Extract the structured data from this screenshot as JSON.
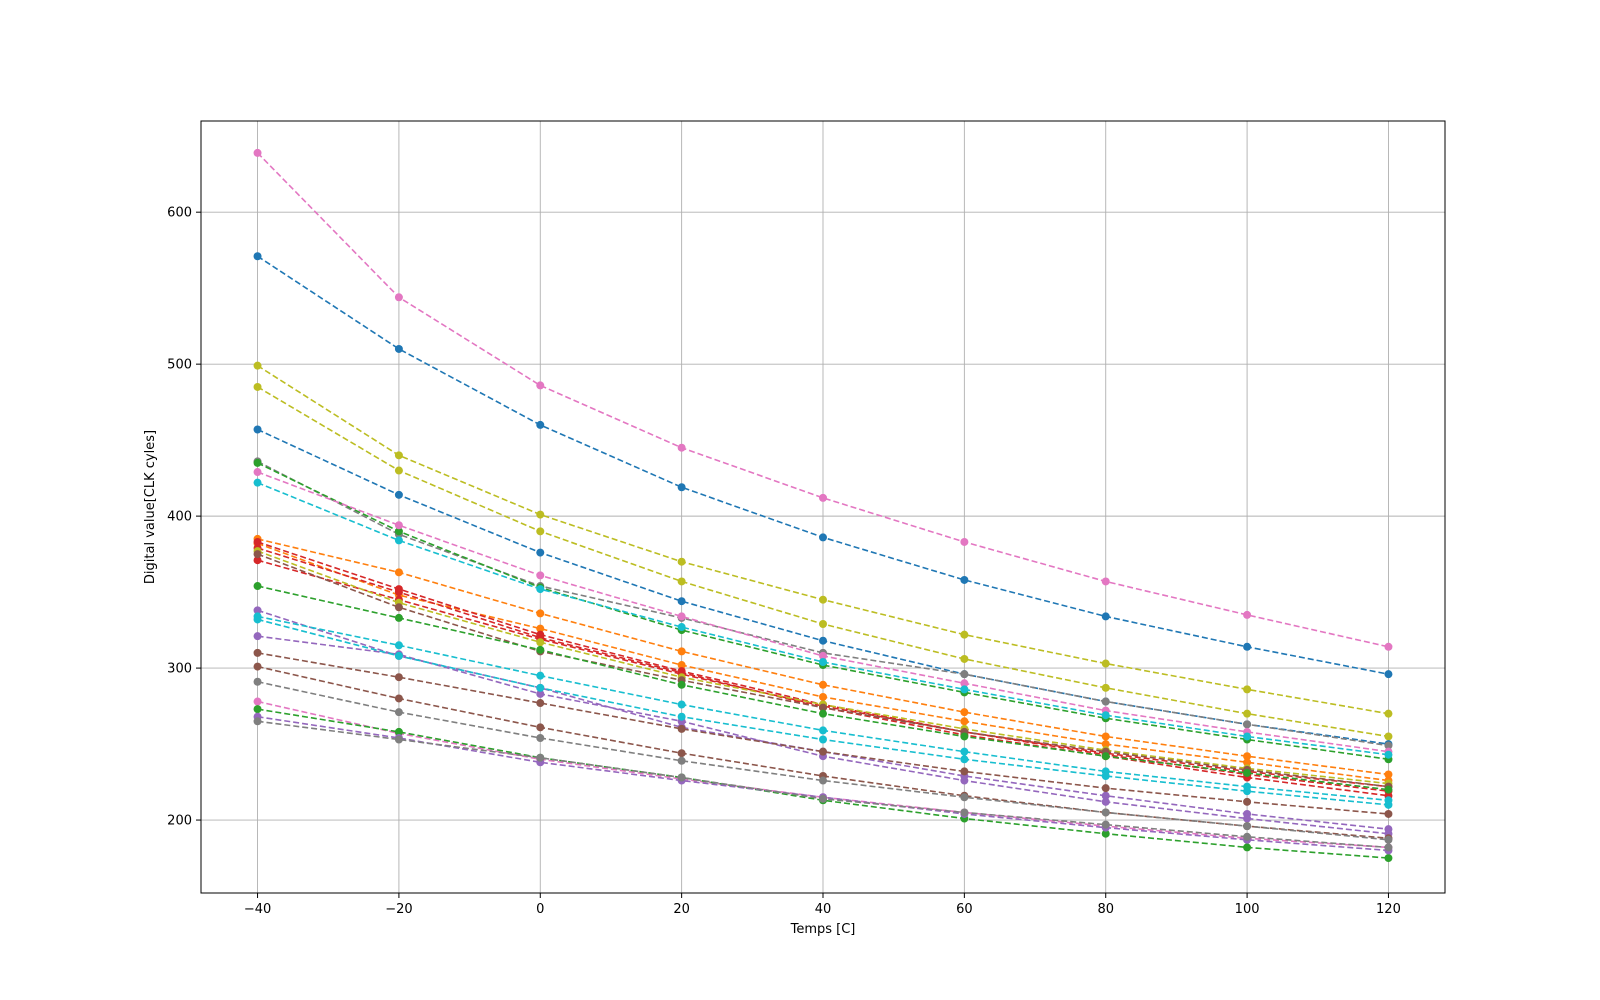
{
  "chart_data": {
    "type": "line",
    "xlabel": "Temps [C]",
    "ylabel": "Digital value[CLK cyles]",
    "x": [
      -40,
      -20,
      0,
      20,
      40,
      60,
      80,
      100,
      120
    ],
    "xticks": [
      -40,
      -20,
      0,
      20,
      40,
      60,
      80,
      100,
      120
    ],
    "xtick_labels": [
      "−40",
      "−20",
      "0",
      "20",
      "40",
      "60",
      "80",
      "100",
      "120"
    ],
    "yticks": [
      200,
      300,
      400,
      500,
      600
    ],
    "ytick_labels": [
      "200",
      "300",
      "400",
      "500",
      "600"
    ],
    "xlim": [
      -48,
      128
    ],
    "ylim": [
      152,
      660
    ],
    "grid": true,
    "line_style": "dashed",
    "marker": "circle",
    "series": [
      {
        "color": "#e377c2",
        "values": [
          639,
          544,
          486,
          445,
          412,
          383,
          357,
          335,
          314
        ]
      },
      {
        "color": "#1f77b4",
        "values": [
          571,
          510,
          460,
          419,
          386,
          358,
          334,
          314,
          296
        ]
      },
      {
        "color": "#bcbd22",
        "values": [
          499,
          440,
          401,
          370,
          345,
          322,
          303,
          286,
          270
        ]
      },
      {
        "color": "#bcbd22",
        "values": [
          485,
          430,
          390,
          357,
          329,
          306,
          287,
          270,
          255
        ]
      },
      {
        "color": "#1f77b4",
        "values": [
          457,
          414,
          376,
          344,
          318,
          296,
          278,
          263,
          250
        ]
      },
      {
        "color": "#7f7f7f",
        "values": [
          436,
          388,
          354,
          333,
          310,
          296,
          278,
          263,
          249
        ]
      },
      {
        "color": "#2ca02c",
        "values": [
          435,
          390,
          353,
          325,
          302,
          284,
          267,
          253,
          240
        ]
      },
      {
        "color": "#e377c2",
        "values": [
          429,
          394,
          361,
          334,
          308,
          290,
          272,
          258,
          245
        ]
      },
      {
        "color": "#17becf",
        "values": [
          422,
          384,
          352,
          327,
          304,
          286,
          269,
          255,
          243
        ]
      },
      {
        "color": "#ff7f0e",
        "values": [
          385,
          363,
          336,
          311,
          289,
          271,
          255,
          242,
          230
        ]
      },
      {
        "color": "#ff7f0e",
        "values": [
          382,
          348,
          326,
          302,
          281,
          265,
          250,
          238,
          226
        ]
      },
      {
        "color": "#d62728",
        "values": [
          383,
          352,
          322,
          298,
          276,
          258,
          243,
          230,
          219
        ]
      },
      {
        "color": "#d62728",
        "values": [
          379,
          350,
          320,
          297,
          274,
          256,
          242,
          228,
          216
        ]
      },
      {
        "color": "#d62728",
        "values": [
          371,
          345,
          319,
          296,
          275,
          258,
          244,
          232,
          222
        ]
      },
      {
        "color": "#bcbd22",
        "values": [
          377,
          343,
          317,
          294,
          276,
          260,
          246,
          234,
          224
        ]
      },
      {
        "color": "#8c564b",
        "values": [
          375,
          340,
          311,
          292,
          274,
          258,
          245,
          233,
          222
        ]
      },
      {
        "color": "#2ca02c",
        "values": [
          354,
          333,
          312,
          289,
          270,
          255,
          242,
          231,
          220
        ]
      },
      {
        "color": "#9467bd",
        "values": [
          338,
          308,
          287,
          261,
          245,
          229,
          216,
          204,
          194
        ]
      },
      {
        "color": "#9467bd",
        "values": [
          321,
          309,
          283,
          265,
          242,
          226,
          212,
          201,
          191
        ]
      },
      {
        "color": "#17becf",
        "values": [
          334,
          315,
          295,
          276,
          259,
          245,
          232,
          222,
          213
        ]
      },
      {
        "color": "#17becf",
        "values": [
          332,
          308,
          287,
          268,
          253,
          240,
          229,
          219,
          210
        ]
      },
      {
        "color": "#8c564b",
        "values": [
          310,
          294,
          277,
          260,
          245,
          232,
          221,
          212,
          204
        ]
      },
      {
        "color": "#8c564b",
        "values": [
          301,
          280,
          261,
          244,
          229,
          216,
          205,
          196,
          188
        ]
      },
      {
        "color": "#7f7f7f",
        "values": [
          291,
          271,
          254,
          239,
          226,
          215,
          205,
          196,
          187
        ]
      },
      {
        "color": "#e377c2",
        "values": [
          278,
          257,
          240,
          227,
          215,
          205,
          196,
          188,
          182
        ]
      },
      {
        "color": "#2ca02c",
        "values": [
          273,
          258,
          241,
          228,
          213,
          201,
          191,
          182,
          175
        ]
      },
      {
        "color": "#9467bd",
        "values": [
          268,
          254,
          238,
          226,
          215,
          204,
          195,
          187,
          180
        ]
      },
      {
        "color": "#7f7f7f",
        "values": [
          265,
          253,
          241,
          228,
          214,
          205,
          197,
          189,
          182
        ]
      }
    ]
  }
}
